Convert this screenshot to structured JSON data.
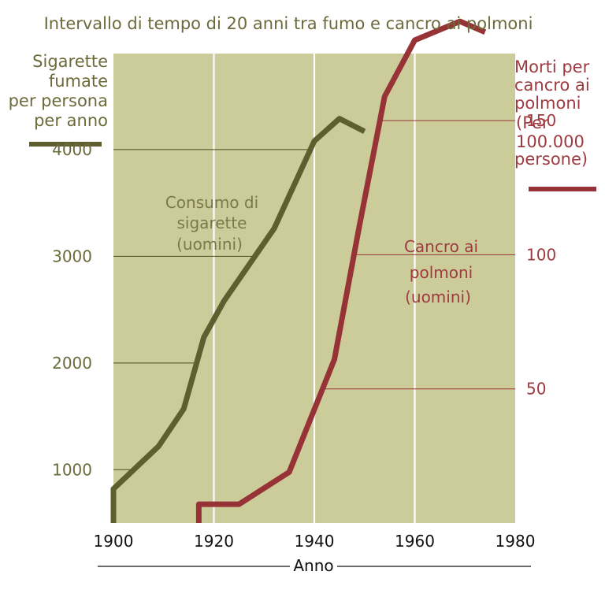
{
  "chart_data": {
    "type": "line",
    "title": "Intervallo di tempo di 20 anni tra fumo e cancro ai polmoni",
    "xlabel": "Anno",
    "xlim": [
      1900,
      1980
    ],
    "x_ticks": [
      "1900",
      "1920",
      "1940",
      "1960",
      "1980"
    ],
    "x_tick_values": [
      1900,
      1920,
      1940,
      1960,
      1980
    ],
    "left_axis": {
      "label_lines": [
        "Sigarette",
        "fumate",
        "per persona",
        "per anno"
      ],
      "ticks": [
        "1000",
        "2000",
        "3000",
        "4000"
      ],
      "tick_values": [
        1000,
        2000,
        3000,
        4000
      ],
      "ylim": [
        500,
        4900
      ]
    },
    "right_axis": {
      "label_lines": [
        "Morti per",
        "cancro ai",
        "polmoni",
        "(Per",
        "100.000",
        "persone)"
      ],
      "ticks": [
        "50",
        "100",
        "150"
      ],
      "tick_values": [
        50,
        100,
        150
      ],
      "ylim": [
        0,
        175
      ]
    },
    "series": [
      {
        "name_lines": [
          "Consumo di",
          "sigarette",
          "(uomini)"
        ],
        "axis": "left",
        "color": "#5f5e2f",
        "x": [
          1900,
          1900,
          1909,
          1914,
          1918,
          1922,
          1932,
          1940,
          1945,
          1950
        ],
        "y": [
          500,
          820,
          1220,
          1570,
          2240,
          2580,
          3260,
          4080,
          4290,
          4170
        ]
      },
      {
        "name_lines": [
          "Cancro ai",
          "polmoni",
          "(uomini)"
        ],
        "axis": "right",
        "color": "#973337",
        "x": [
          1917,
          1917,
          1925,
          1935,
          1944,
          1949,
          1954,
          1960,
          1969,
          1974
        ],
        "y": [
          0,
          7,
          7,
          19,
          61,
          111,
          159,
          180,
          187,
          183
        ]
      }
    ],
    "grid": "vertical",
    "plot_background": "#cccc9b"
  }
}
